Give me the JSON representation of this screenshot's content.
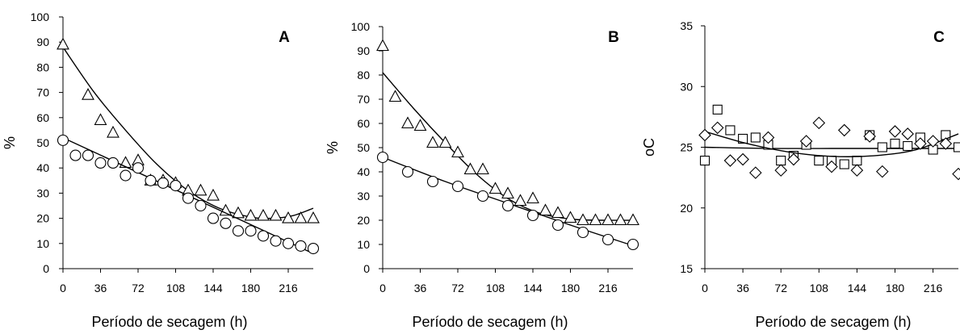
{
  "chart_data": [
    {
      "type": "scatter",
      "panel_label": "A",
      "xlabel": "Período de secagem (h)",
      "ylabel": "%",
      "xlim": [
        0,
        240
      ],
      "ylim": [
        0,
        100
      ],
      "x_ticks": [
        0,
        36,
        72,
        108,
        144,
        180,
        216
      ],
      "y_ticks": [
        0,
        10,
        20,
        30,
        40,
        50,
        60,
        70,
        80,
        90,
        100
      ],
      "grid": false,
      "series": [
        {
          "marker": "triangle",
          "x": [
            0,
            24,
            36,
            48,
            60,
            72,
            84,
            96,
            108,
            120,
            132,
            144,
            156,
            168,
            180,
            192,
            204,
            216,
            228,
            240
          ],
          "y": [
            89,
            69,
            59,
            54,
            42,
            43,
            35,
            35,
            34,
            31,
            31,
            29,
            23,
            22,
            21,
            21,
            21,
            20,
            20,
            20
          ],
          "trend": [
            [
              0,
              88
            ],
            [
              30,
              70
            ],
            [
              60,
              55
            ],
            [
              90,
              41.5
            ],
            [
              120,
              31
            ],
            [
              150,
              24
            ],
            [
              180,
              20.5
            ],
            [
              200,
              20
            ],
            [
              220,
              21
            ],
            [
              240,
              24
            ]
          ]
        },
        {
          "marker": "circle",
          "x": [
            0,
            12,
            24,
            36,
            48,
            60,
            72,
            84,
            96,
            108,
            120,
            132,
            144,
            156,
            168,
            180,
            192,
            204,
            216,
            228,
            240
          ],
          "y": [
            51,
            45,
            45,
            42,
            42,
            37,
            40,
            35,
            34,
            33,
            28,
            25,
            20,
            18,
            15,
            15,
            13,
            11,
            10,
            9,
            8
          ],
          "trend": [
            [
              0,
              52
            ],
            [
              240,
              6
            ]
          ]
        }
      ]
    },
    {
      "type": "scatter",
      "panel_label": "B",
      "xlabel": "Período de secagem (h)",
      "ylabel": "%",
      "xlim": [
        0,
        240
      ],
      "ylim": [
        0,
        100
      ],
      "x_ticks": [
        0,
        36,
        72,
        108,
        144,
        180,
        216
      ],
      "y_ticks": [
        0,
        10,
        20,
        30,
        40,
        50,
        60,
        70,
        80,
        90,
        100
      ],
      "grid": false,
      "series": [
        {
          "marker": "triangle",
          "x": [
            0,
            12,
            24,
            36,
            48,
            60,
            72,
            84,
            96,
            108,
            120,
            132,
            144,
            156,
            168,
            180,
            192,
            204,
            216,
            228,
            240
          ],
          "y": [
            92,
            71,
            60,
            59,
            52,
            52,
            48,
            41,
            41,
            33,
            31,
            28,
            29,
            24,
            23,
            21,
            20,
            20,
            20,
            20,
            20
          ],
          "trend": [
            [
              0,
              81
            ],
            [
              30,
              66
            ],
            [
              60,
              52
            ],
            [
              90,
              39
            ],
            [
              120,
              29
            ],
            [
              150,
              23
            ],
            [
              180,
              20.5
            ],
            [
              210,
              20
            ],
            [
              240,
              20
            ]
          ]
        },
        {
          "marker": "circle",
          "x": [
            0,
            24,
            48,
            72,
            96,
            120,
            144,
            168,
            192,
            216,
            240
          ],
          "y": [
            46,
            40,
            36,
            34,
            30,
            26,
            22,
            18,
            15,
            12,
            10
          ],
          "trend": [
            [
              0,
              46
            ],
            [
              60,
              36
            ],
            [
              120,
              27
            ],
            [
              180,
              18
            ],
            [
              240,
              9.5
            ]
          ]
        }
      ]
    },
    {
      "type": "scatter",
      "panel_label": "C",
      "xlabel": "Período de secagem (h)",
      "ylabel": "oC",
      "xlim": [
        0,
        240
      ],
      "ylim": [
        15,
        35
      ],
      "x_ticks": [
        0,
        36,
        72,
        108,
        144,
        180,
        216
      ],
      "y_ticks": [
        15,
        20,
        25,
        30,
        35
      ],
      "grid": false,
      "series": [
        {
          "marker": "square",
          "x": [
            0,
            12,
            24,
            36,
            48,
            60,
            72,
            84,
            96,
            108,
            120,
            132,
            144,
            156,
            168,
            180,
            192,
            204,
            216,
            228,
            240
          ],
          "y": [
            23.9,
            28.1,
            26.4,
            25.7,
            25.8,
            25.2,
            23.9,
            24.3,
            25.2,
            23.9,
            23.9,
            23.6,
            23.9,
            26.0,
            25.0,
            25.3,
            25.1,
            25.8,
            24.8,
            26.0,
            25.0
          ],
          "trend": [
            [
              0,
              25
            ],
            [
              60,
              24.9
            ],
            [
              120,
              24.9
            ],
            [
              180,
              24.9
            ],
            [
              240,
              24.9
            ]
          ]
        },
        {
          "marker": "diamond",
          "x": [
            0,
            12,
            24,
            36,
            48,
            60,
            72,
            84,
            96,
            108,
            120,
            132,
            144,
            156,
            168,
            180,
            192,
            204,
            216,
            228,
            240
          ],
          "y": [
            26.0,
            26.6,
            23.9,
            24.0,
            22.9,
            25.8,
            23.1,
            24.0,
            25.5,
            27.0,
            23.4,
            26.4,
            23.1,
            25.9,
            23.0,
            26.3,
            26.1,
            25.3,
            25.5,
            25.3,
            22.8
          ],
          "trend": [
            [
              0,
              26.3
            ],
            [
              40,
              25.3
            ],
            [
              80,
              24.6
            ],
            [
              120,
              24.25
            ],
            [
              160,
              24.3
            ],
            [
              200,
              24.8
            ],
            [
              240,
              26.1
            ]
          ]
        }
      ]
    }
  ]
}
